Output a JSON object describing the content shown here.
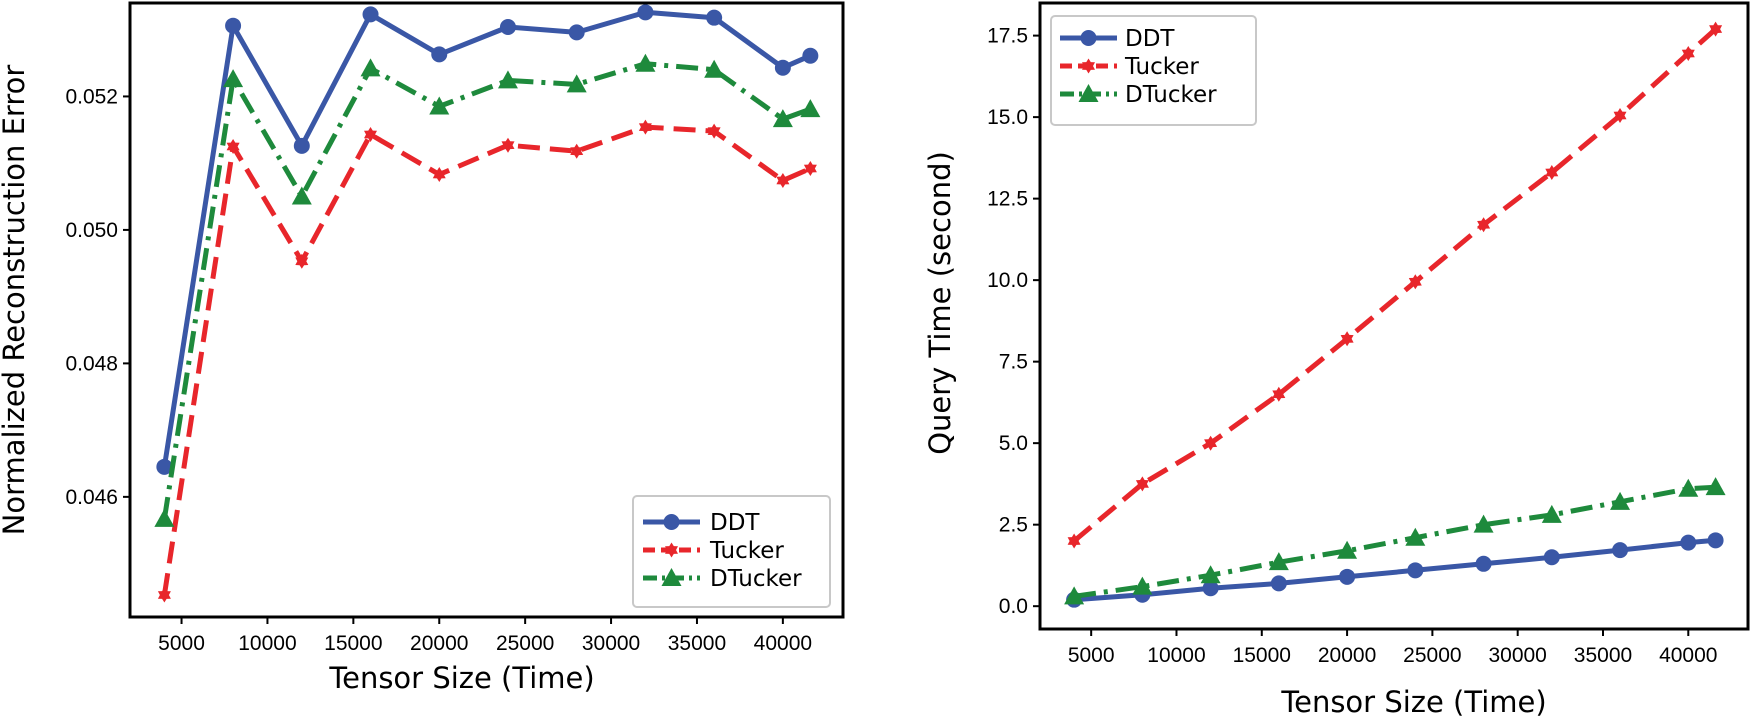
{
  "chart_data": [
    {
      "type": "line",
      "xlabel": "Tensor Size (Time)",
      "ylabel": "Normalized Reconstruction Error",
      "xlim": [
        2000,
        43500
      ],
      "ylim": [
        0.0442,
        0.0534
      ],
      "xticks": [
        5000,
        10000,
        15000,
        20000,
        25000,
        30000,
        35000,
        40000
      ],
      "yticks": [
        0.046,
        0.048,
        0.05,
        0.052
      ],
      "ytick_labels": [
        "0.046",
        "0.048",
        "0.050",
        "0.052"
      ],
      "legend_position": "lower-right",
      "x": [
        4000,
        8000,
        12000,
        16000,
        20000,
        24000,
        28000,
        32000,
        36000,
        40000,
        41600
      ],
      "series": [
        {
          "name": "DDT",
          "color": "#3a57a6",
          "style": "solid",
          "marker": "circle",
          "values": [
            0.04645,
            0.05306,
            0.05126,
            0.05323,
            0.05263,
            0.05304,
            0.05296,
            0.05326,
            0.05318,
            0.05243,
            0.05261
          ]
        },
        {
          "name": "Tucker",
          "color": "#e8262b",
          "style": "dashed",
          "marker": "star",
          "values": [
            0.04453,
            0.05125,
            0.04953,
            0.05143,
            0.05083,
            0.05127,
            0.05118,
            0.05154,
            0.05148,
            0.05074,
            0.05092
          ]
        },
        {
          "name": "DTucker",
          "color": "#1e8a3c",
          "style": "dashdot",
          "marker": "triangle",
          "values": [
            0.04567,
            0.05226,
            0.0505,
            0.05242,
            0.05185,
            0.05224,
            0.05218,
            0.05249,
            0.0524,
            0.05166,
            0.05181
          ]
        }
      ]
    },
    {
      "type": "line",
      "xlabel": "Tensor Size (Time)",
      "ylabel": "Query Time (second)",
      "xlim": [
        2000,
        43500
      ],
      "ylim": [
        -0.7,
        18.5
      ],
      "xticks": [
        5000,
        10000,
        15000,
        20000,
        25000,
        30000,
        35000,
        40000
      ],
      "yticks": [
        0.0,
        2.5,
        5.0,
        7.5,
        10.0,
        12.5,
        15.0,
        17.5
      ],
      "ytick_labels": [
        "0.0",
        "2.5",
        "5.0",
        "7.5",
        "10.0",
        "12.5",
        "15.0",
        "17.5"
      ],
      "legend_position": "upper-left",
      "x": [
        4000,
        8000,
        12000,
        16000,
        20000,
        24000,
        28000,
        32000,
        36000,
        40000,
        41600
      ],
      "series": [
        {
          "name": "DDT",
          "color": "#3a57a6",
          "style": "solid",
          "marker": "circle",
          "values": [
            0.2,
            0.35,
            0.55,
            0.7,
            0.9,
            1.1,
            1.3,
            1.5,
            1.72,
            1.95,
            2.02
          ]
        },
        {
          "name": "Tucker",
          "color": "#e8262b",
          "style": "dashed",
          "marker": "star",
          "values": [
            2.0,
            3.75,
            5.0,
            6.5,
            8.2,
            9.95,
            11.7,
            13.3,
            15.05,
            16.95,
            17.7
          ]
        },
        {
          "name": "DTucker",
          "color": "#1e8a3c",
          "style": "dashdot",
          "marker": "triangle",
          "values": [
            0.3,
            0.6,
            0.95,
            1.35,
            1.7,
            2.1,
            2.5,
            2.8,
            3.2,
            3.6,
            3.65
          ]
        }
      ]
    }
  ]
}
